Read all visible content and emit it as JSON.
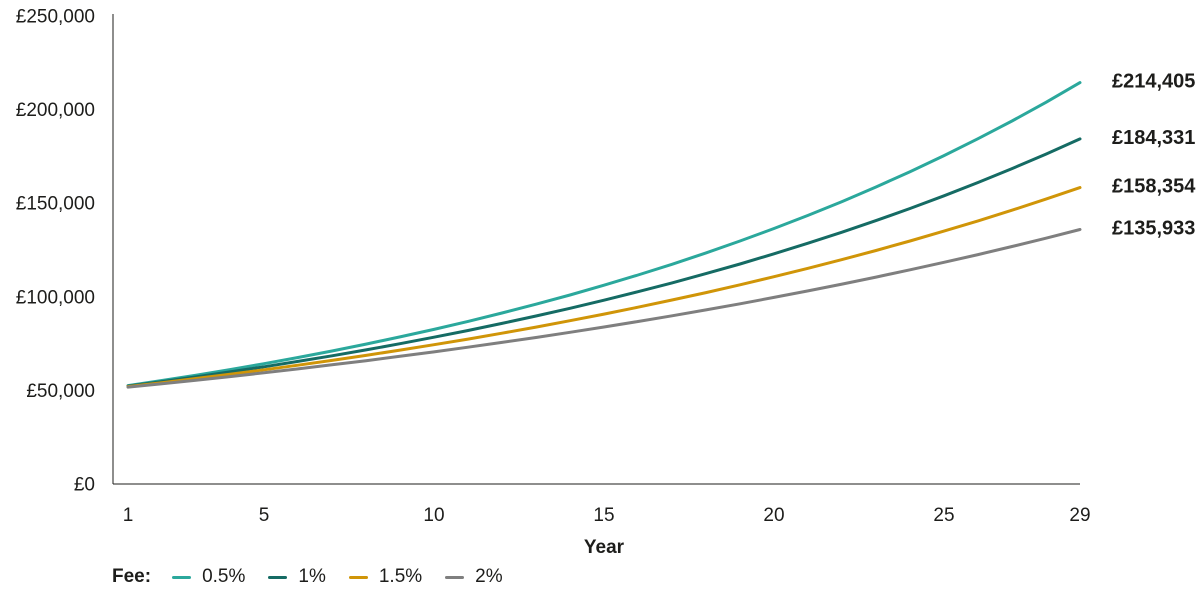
{
  "colors": {
    "axis": "#1d1d1b",
    "text": "#1d1d1b",
    "teal": "#2ba89c",
    "dark_teal": "#156b64",
    "gold": "#d09508",
    "gray": "#7f7f7f"
  },
  "chart_data": {
    "type": "line",
    "title": "",
    "xlabel": "Year",
    "ylabel": "",
    "legend_title": "Fee:",
    "legend_position": "bottom-left",
    "grid": false,
    "xlim": [
      1,
      29
    ],
    "ylim": [
      0,
      250000
    ],
    "x_ticks": [
      1,
      5,
      10,
      15,
      20,
      25,
      29
    ],
    "y_ticks": [
      {
        "value": 0,
        "label": "£0"
      },
      {
        "value": 50000,
        "label": "£50,000"
      },
      {
        "value": 100000,
        "label": "£100,000"
      },
      {
        "value": 150000,
        "label": "£150,000"
      },
      {
        "value": 200000,
        "label": "£200,000"
      },
      {
        "value": 250000,
        "label": "£250,000"
      }
    ],
    "x": [
      1,
      2,
      3,
      4,
      5,
      6,
      7,
      8,
      9,
      10,
      11,
      12,
      13,
      14,
      15,
      16,
      17,
      18,
      19,
      20,
      21,
      22,
      23,
      24,
      25,
      26,
      27,
      28,
      29
    ],
    "series": [
      {
        "name": "0.5%",
        "color": "#2ba89c",
        "end_label": "£214,405",
        "values": [
          52574,
          55281,
          58127,
          61120,
          64266,
          67575,
          71054,
          74712,
          78559,
          82603,
          86856,
          91328,
          96030,
          100974,
          106172,
          111638,
          117386,
          123429,
          129784,
          136466,
          143491,
          150879,
          158647,
          166814,
          175403,
          184433,
          193928,
          203913,
          214405
        ]
      },
      {
        "name": "1%",
        "color": "#156b64",
        "end_label": "£184,331",
        "values": [
          52301,
          54708,
          57225,
          59858,
          62613,
          65494,
          68508,
          71660,
          74958,
          78407,
          82015,
          85789,
          89737,
          93866,
          98185,
          102704,
          107430,
          112373,
          117544,
          122953,
          128611,
          134529,
          140720,
          147195,
          153969,
          161054,
          168465,
          176217,
          184331
        ]
      },
      {
        "name": "1.5%",
        "color": "#d09508",
        "end_label": "£158,354",
        "values": [
          52028,
          54138,
          56333,
          58617,
          60995,
          63468,
          66042,
          68720,
          71507,
          74406,
          77424,
          80564,
          83831,
          87230,
          90768,
          94448,
          98279,
          102264,
          106411,
          110726,
          115216,
          119889,
          124751,
          129810,
          135074,
          140551,
          146251,
          152182,
          158354
        ]
      },
      {
        "name": "2%",
        "color": "#7f7f7f",
        "end_label": "£135,933",
        "values": [
          51754,
          53570,
          55450,
          57396,
          59410,
          61494,
          63652,
          65885,
          68197,
          70590,
          73067,
          75631,
          78284,
          81031,
          83874,
          86818,
          89864,
          93017,
          96281,
          99659,
          103156,
          106776,
          110522,
          114400,
          118415,
          122569,
          126870,
          131322,
          135933
        ]
      }
    ]
  }
}
